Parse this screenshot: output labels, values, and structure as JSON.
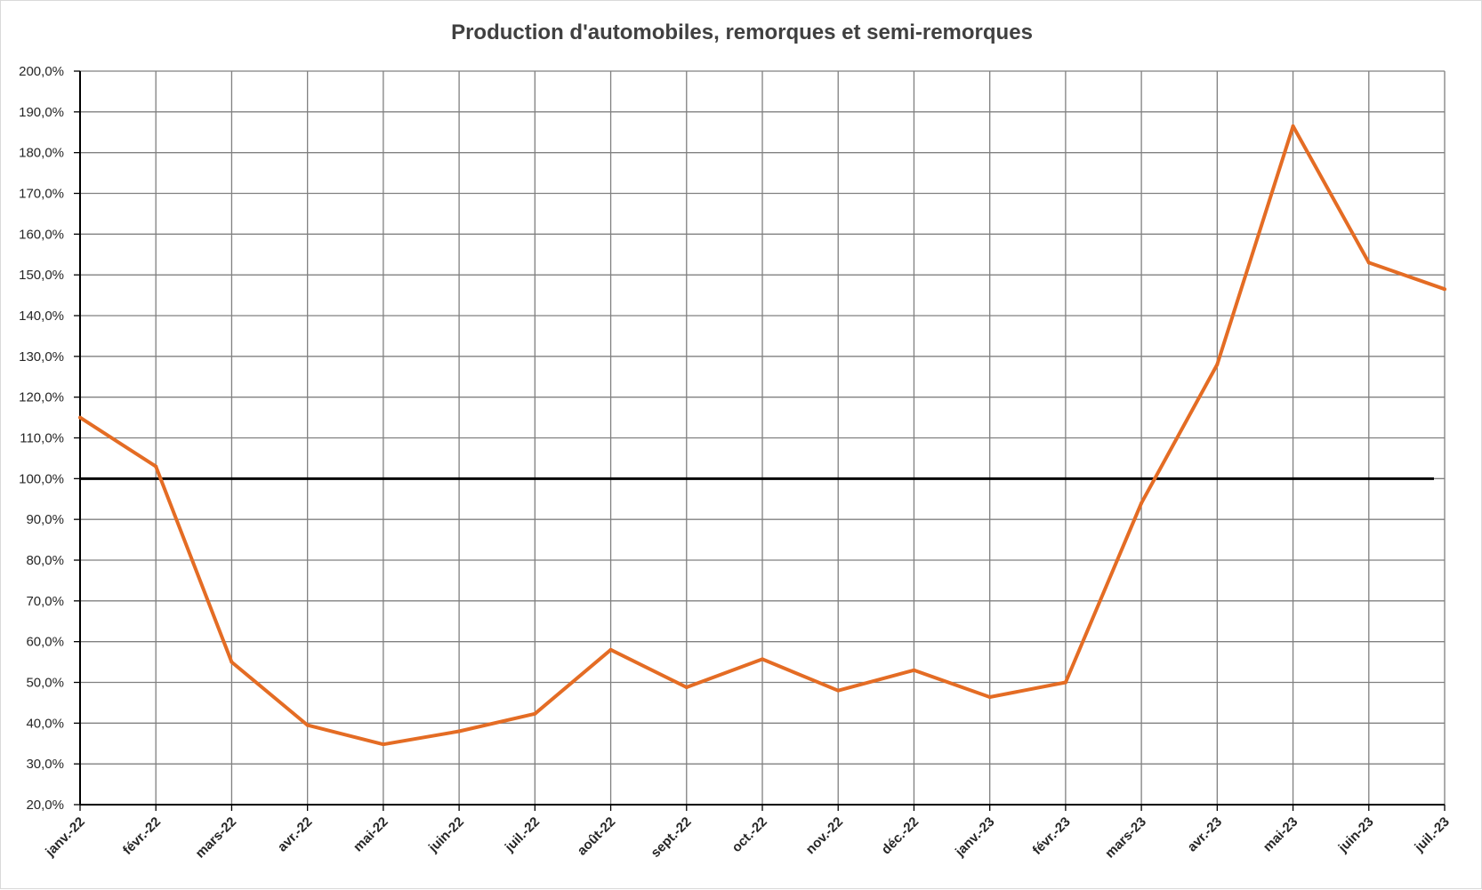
{
  "chart_data": {
    "type": "line",
    "title": "Production d'automobiles, remorques et semi-remorques",
    "xlabel": "",
    "ylabel": "",
    "categories": [
      "janv.-22",
      "févr.-22",
      "mars-22",
      "avr.-22",
      "mai-22",
      "juin-22",
      "juil.-22",
      "août-22",
      "sept.-22",
      "oct.-22",
      "nov.-22",
      "déc.-22",
      "janv.-23",
      "févr.-23",
      "mars-23",
      "avr.-23",
      "mai-23",
      "juin-23",
      "juil.-23"
    ],
    "series": [
      {
        "values": [
          115.0,
          103.0,
          55.0,
          39.5,
          34.8,
          38.0,
          42.3,
          58.0,
          48.8,
          55.7,
          48.0,
          53.0,
          46.4,
          50.0,
          94.0,
          128.0,
          186.5,
          153.0,
          146.5
        ],
        "color": "#e46c24"
      }
    ],
    "reference_line": {
      "value": 100,
      "color": "#000000"
    },
    "ylim": [
      20,
      200
    ],
    "ytick_step": 10,
    "ytick_labels": [
      "20,0%",
      "30,0%",
      "40,0%",
      "50,0%",
      "60,0%",
      "70,0%",
      "80,0%",
      "90,0%",
      "100,0%",
      "110,0%",
      "120,0%",
      "130,0%",
      "140,0%",
      "150,0%",
      "160,0%",
      "170,0%",
      "180,0%",
      "190,0%",
      "200,0%"
    ],
    "grid": true,
    "legend": "none"
  }
}
